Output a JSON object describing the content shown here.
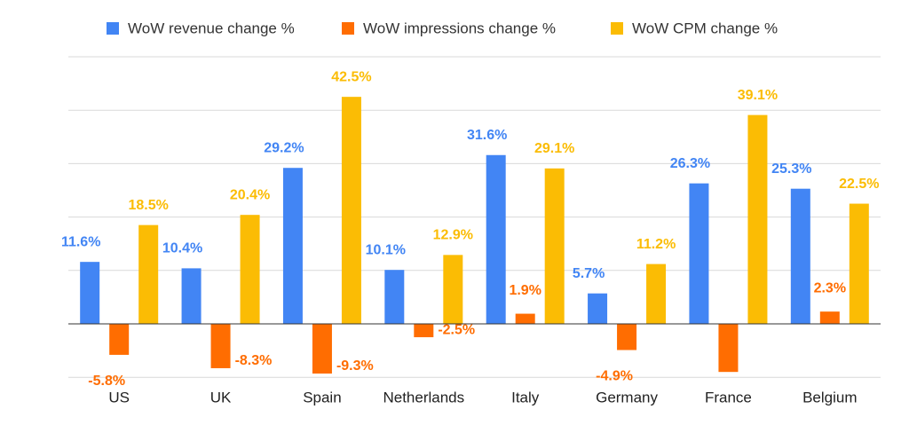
{
  "chart_data": {
    "type": "bar",
    "categories": [
      "US",
      "UK",
      "Spain",
      "Netherlands",
      "Italy",
      "Germany",
      "France",
      "Belgium"
    ],
    "series": [
      {
        "name": "WoW revenue change %",
        "color": "#4285f4",
        "values": [
          11.6,
          10.4,
          29.2,
          10.1,
          31.6,
          5.7,
          26.3,
          25.3
        ],
        "labels": [
          "11.6%",
          "10.4%",
          "29.2%",
          "10.1%",
          "31.6%",
          "5.7%",
          "26.3%",
          "25.3%"
        ]
      },
      {
        "name": "WoW impressions change %",
        "color": "#ff6d01",
        "values": [
          -5.8,
          -8.3,
          -9.3,
          -2.5,
          1.9,
          -4.9,
          -9.0,
          2.3
        ],
        "labels": [
          "-5.8%",
          "-8.3%",
          "-9.3%",
          "-2.5%",
          "1.9%",
          "-4.9%",
          "",
          "2.3%"
        ]
      },
      {
        "name": "WoW CPM change %",
        "color": "#fbbc04",
        "values": [
          18.5,
          20.4,
          42.5,
          12.9,
          29.1,
          11.2,
          39.1,
          22.5
        ],
        "labels": [
          "18.5%",
          "20.4%",
          "42.5%",
          "12.9%",
          "29.1%",
          "11.2%",
          "39.1%",
          "22.5%"
        ]
      }
    ],
    "ylim": [
      -10,
      50
    ],
    "grid": true,
    "legend": "top",
    "title": "",
    "xlabel": "",
    "ylabel": ""
  }
}
